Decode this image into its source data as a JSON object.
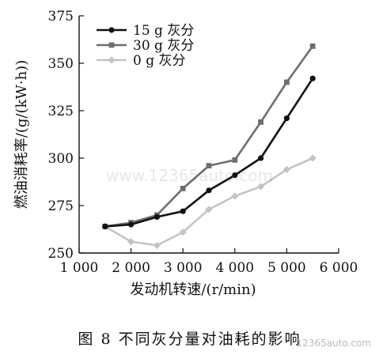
{
  "chart_data": {
    "type": "line",
    "title": "",
    "xlabel": "发动机转速/(r/min)",
    "ylabel": "燃油消耗率/(g/(kW·h))",
    "xlim": [
      1000,
      6000
    ],
    "ylim": [
      250,
      375
    ],
    "xticks": [
      1000,
      2000,
      3000,
      4000,
      5000,
      6000
    ],
    "xtick_labels": [
      "1 000",
      "2 000",
      "3 000",
      "4 000",
      "5 000",
      "6 000"
    ],
    "yticks": [
      250,
      275,
      300,
      325,
      350,
      375
    ],
    "ytick_labels": [
      "250",
      "275",
      "300",
      "325",
      "350",
      "375"
    ],
    "legend_position": "top-left",
    "grid": false,
    "x": [
      1500,
      2000,
      2500,
      3000,
      3500,
      4000,
      4500,
      5000,
      5500
    ],
    "series": [
      {
        "name": "15 g 灰分",
        "color": "#111111",
        "marker": "circle",
        "values": [
          264,
          265,
          269,
          272,
          283,
          291,
          300,
          321,
          342
        ]
      },
      {
        "name": "30 g 灰分",
        "color": "#6e6e6e",
        "marker": "square",
        "values": [
          264,
          266,
          270,
          284,
          296,
          299,
          319,
          340,
          359
        ]
      },
      {
        "name": "0 g 灰分",
        "color": "#c4c4c4",
        "marker": "diamond",
        "values": [
          264,
          256,
          254,
          261,
          273,
          280,
          285,
          294,
          300
        ]
      }
    ]
  },
  "caption": "图 8   不同灰分量对油耗的影响",
  "watermark": "www.12365auto.com",
  "corner_mark": "12365auto.com"
}
